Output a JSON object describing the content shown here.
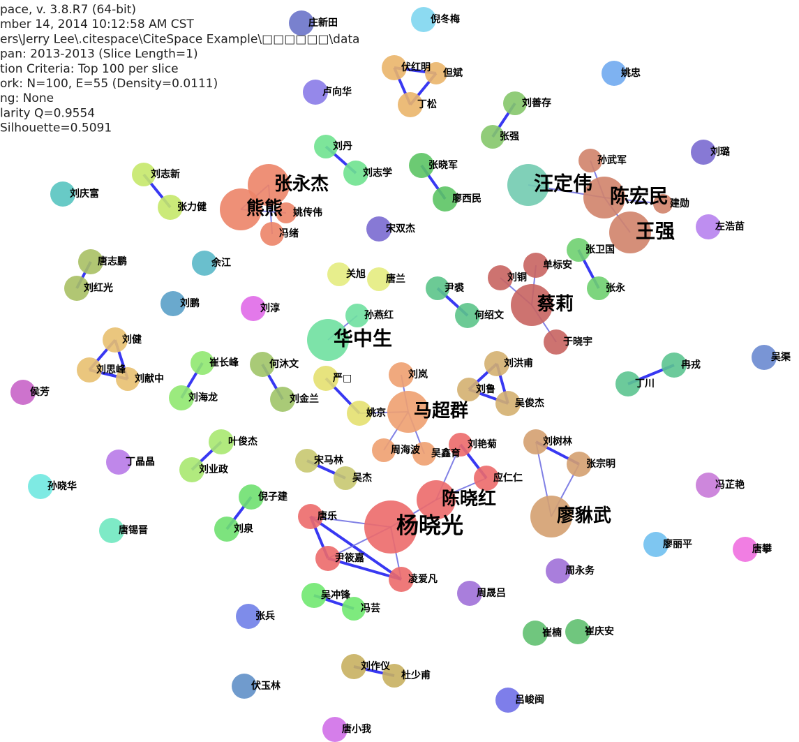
{
  "header": {
    "lines": [
      "pace, v. 3.8.R7 (64-bit)",
      "mber 14, 2014 10:12:58 AM CST",
      "ers\\Jerry Lee\\.citespace\\CiteSpace Example\\□□□□□□\\data",
      "pan: 2013-2013 (Slice Length=1)",
      "tion Criteria: Top 100 per slice",
      "ork: N=100, E=55 (Density=0.0111)",
      "ng: None",
      "larity Q=0.9554",
      " Silhouette=0.5091"
    ]
  },
  "nodes": [
    {
      "label": "庄新田"
    },
    {
      "label": "倪冬梅"
    },
    {
      "label": "伏红明"
    },
    {
      "label": "但斌"
    },
    {
      "label": "丁松"
    },
    {
      "label": "卢向华"
    },
    {
      "label": "姚忠"
    },
    {
      "label": "刘善存"
    },
    {
      "label": "张强"
    },
    {
      "label": "刘丹"
    },
    {
      "label": "刘志学"
    },
    {
      "label": "张晓军"
    },
    {
      "label": "廖西民"
    },
    {
      "label": "孙武军"
    },
    {
      "label": "刘璐"
    },
    {
      "label": "汪定伟"
    },
    {
      "label": "陈宏民"
    },
    {
      "label": "建勋"
    },
    {
      "label": "王强"
    },
    {
      "label": "左浩苗"
    },
    {
      "label": "刘志新"
    },
    {
      "label": "张力健"
    },
    {
      "label": "刘庆富"
    },
    {
      "label": "张永杰"
    },
    {
      "label": "熊熊"
    },
    {
      "label": "姚传伟"
    },
    {
      "label": "冯绪"
    },
    {
      "label": "宋双杰"
    },
    {
      "label": "唐志鹏"
    },
    {
      "label": "刘红光"
    },
    {
      "label": "余江"
    },
    {
      "label": "关旭"
    },
    {
      "label": "唐兰"
    },
    {
      "label": "孙燕红"
    },
    {
      "label": "华中生"
    },
    {
      "label": "尹裘"
    },
    {
      "label": "何绍文"
    },
    {
      "label": "刘铜"
    },
    {
      "label": "单标安"
    },
    {
      "label": "张卫国"
    },
    {
      "label": "张永"
    },
    {
      "label": "蔡莉"
    },
    {
      "label": "于晓宇"
    },
    {
      "label": "刘鹏"
    },
    {
      "label": "刘淳"
    },
    {
      "label": "刘健"
    },
    {
      "label": "刘思峰"
    },
    {
      "label": "刘献中"
    },
    {
      "label": "崔长峰"
    },
    {
      "label": "何沐文"
    },
    {
      "label": "刘海龙"
    },
    {
      "label": "刘金兰"
    },
    {
      "label": "严□"
    },
    {
      "label": "姚京"
    },
    {
      "label": "刘岚"
    },
    {
      "label": "马超群"
    },
    {
      "label": "刘洪甫"
    },
    {
      "label": "刘鲁"
    },
    {
      "label": "吴俊杰"
    },
    {
      "label": "冉戎"
    },
    {
      "label": "丁川"
    },
    {
      "label": "吴渠"
    },
    {
      "label": "侯芳"
    },
    {
      "label": "叶俊杰"
    },
    {
      "label": "刘业政"
    },
    {
      "label": "丁晶晶"
    },
    {
      "label": "宋马林"
    },
    {
      "label": "吴杰"
    },
    {
      "label": "周海波"
    },
    {
      "label": "吴鑫育"
    },
    {
      "label": "刘艳菊"
    },
    {
      "label": "应仁仁"
    },
    {
      "label": "陈晓红"
    },
    {
      "label": "廖貅武"
    },
    {
      "label": "刘树林"
    },
    {
      "label": "张宗明"
    },
    {
      "label": "孙晓华"
    },
    {
      "label": "冯芷艳"
    },
    {
      "label": "倪子建"
    },
    {
      "label": "刘泉"
    },
    {
      "label": "唐锡晋"
    },
    {
      "label": "唐乐"
    },
    {
      "label": "杨晓光"
    },
    {
      "label": "尹筱嘉"
    },
    {
      "label": "凌爱凡"
    },
    {
      "label": "廖丽平"
    },
    {
      "label": "唐攀"
    },
    {
      "label": "周永务"
    },
    {
      "label": "周晟吕"
    },
    {
      "label": "吴冲锋"
    },
    {
      "label": "冯芸"
    },
    {
      "label": "张兵"
    },
    {
      "label": "崔楠"
    },
    {
      "label": "崔庆安"
    },
    {
      "label": "刘作仪"
    },
    {
      "label": "杜少甫"
    },
    {
      "label": "伏玉林"
    },
    {
      "label": "吕峻闽"
    },
    {
      "label": "唐小我"
    }
  ]
}
